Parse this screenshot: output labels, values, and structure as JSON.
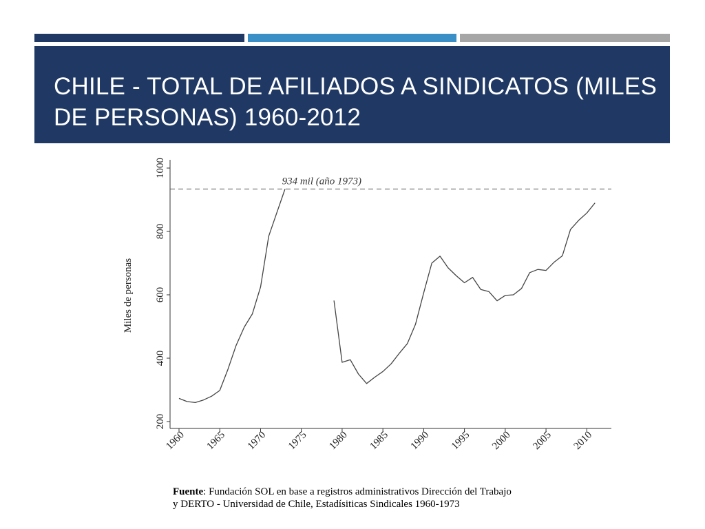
{
  "slide": {
    "title": "Chile - Total de afiliados a sindicatos (miles de personas) 1960-2012",
    "colors": {
      "dark_blue": "#1f3864",
      "light_blue": "#3a8fc6",
      "gray": "#a6a6a6"
    }
  },
  "source": {
    "label": "Fuente",
    "text_line1": ": Fundación SOL en base a registros administrativos Dirección del Trabajo",
    "text_line2": "y DERTO - Universidad de Chile, Estadísiticas Sindicales 1960-1973"
  },
  "chart_data": {
    "type": "line",
    "ylabel": "Miles de personas",
    "xlabel": "",
    "xlim": [
      1960,
      2012
    ],
    "ylim": [
      200,
      1000
    ],
    "xticks": [
      "1960",
      "1965",
      "1970",
      "1975",
      "1980",
      "1985",
      "1990",
      "1995",
      "2000",
      "2005",
      "2010"
    ],
    "yticks": [
      "200",
      "400",
      "600",
      "800",
      "1000"
    ],
    "grid": false,
    "reference_line": {
      "y": 934,
      "label": "934 mil (año 1973)"
    },
    "segments": [
      {
        "x": [
          1960,
          1961,
          1962,
          1963,
          1964,
          1965,
          1966,
          1967,
          1968,
          1969,
          1970,
          1971,
          1972,
          1973
        ],
        "y": [
          273,
          263,
          260,
          268,
          280,
          298,
          365,
          440,
          498,
          540,
          625,
          785,
          860,
          934
        ]
      },
      {
        "x": [
          1979,
          1980,
          1981,
          1982,
          1983,
          1984,
          1985,
          1986,
          1987,
          1988,
          1989,
          1990,
          1991,
          1992,
          1993,
          1994,
          1995,
          1996,
          1997,
          1998,
          1999,
          2000,
          2001,
          2002,
          2003,
          2004,
          2005,
          2006,
          2007,
          2008,
          2009,
          2010,
          2011
        ],
        "y": [
          582,
          387,
          395,
          350,
          320,
          340,
          358,
          382,
          415,
          446,
          507,
          606,
          700,
          722,
          685,
          660,
          638,
          655,
          617,
          610,
          581,
          598,
          600,
          620,
          670,
          680,
          677,
          703,
          723,
          806,
          835,
          858,
          890
        ]
      }
    ]
  }
}
